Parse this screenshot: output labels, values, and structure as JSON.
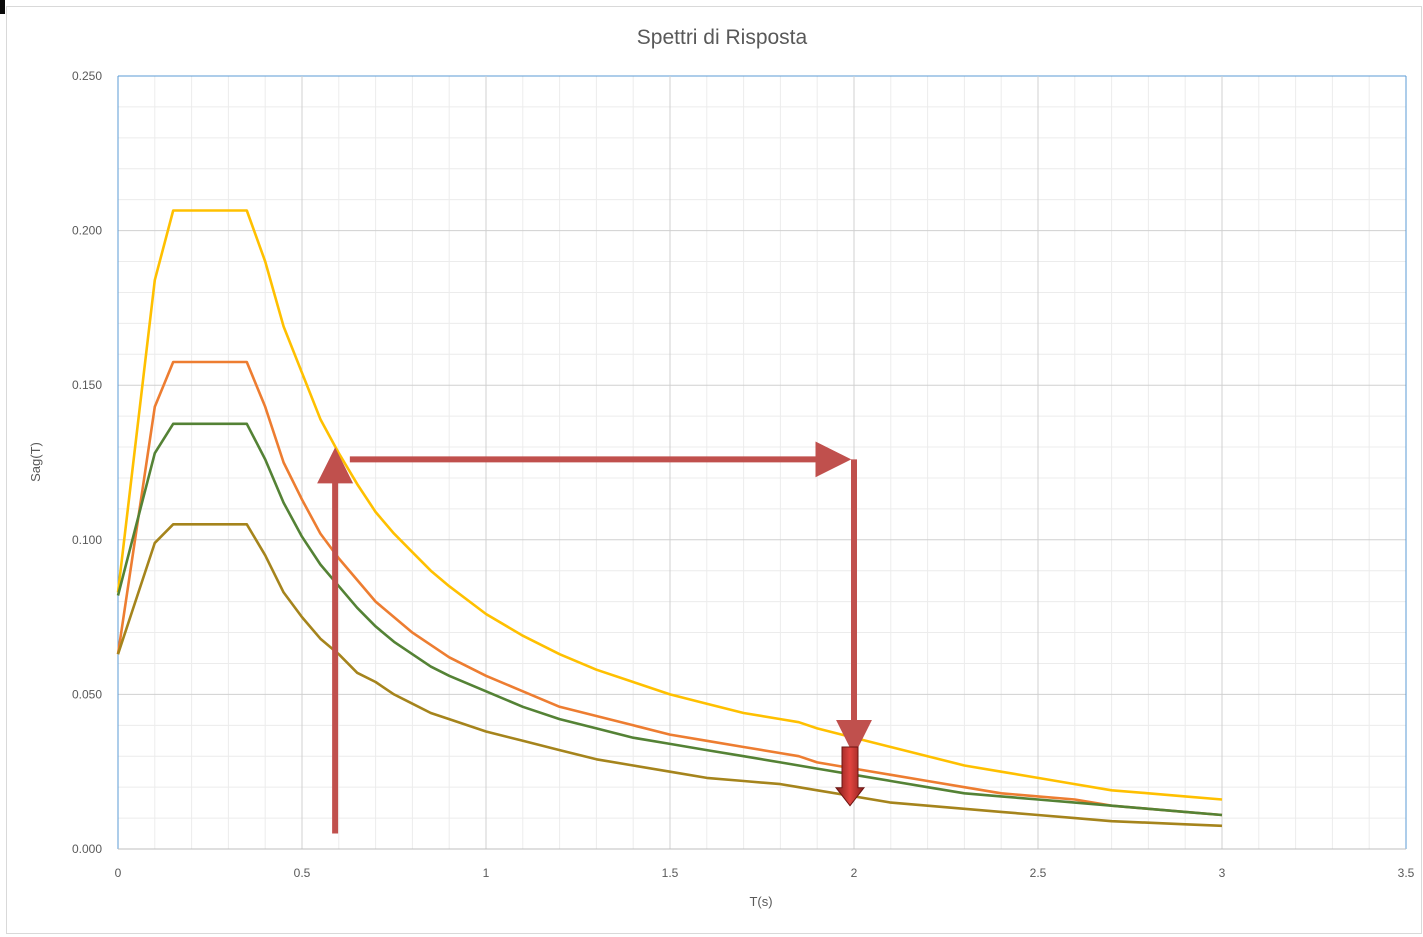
{
  "chart_data": {
    "type": "line",
    "title": "Spettri di Risposta",
    "xlabel": "T(s)",
    "ylabel": "Sag(T)",
    "xlim": [
      0,
      3.5
    ],
    "ylim": [
      0,
      0.25
    ],
    "xticks": [
      0,
      0.5,
      1,
      1.5,
      2,
      2.5,
      3,
      3.5
    ],
    "xtick_labels": [
      "0",
      "0.5",
      "1",
      "1.5",
      "2",
      "2.5",
      "3",
      "3.5"
    ],
    "yticks": [
      0,
      0.05,
      0.1,
      0.15,
      0.2,
      0.25
    ],
    "ytick_labels": [
      "0.000",
      "0.050",
      "0.100",
      "0.150",
      "0.200",
      "0.250"
    ],
    "grid": true,
    "legend": "none",
    "series": [
      {
        "color": "#ffc000",
        "points": [
          [
            0,
            0.083
          ],
          [
            0.1,
            0.184
          ],
          [
            0.15,
            0.2065
          ],
          [
            0.35,
            0.2065
          ],
          [
            0.4,
            0.19
          ],
          [
            0.45,
            0.169
          ],
          [
            0.5,
            0.154
          ],
          [
            0.55,
            0.139
          ],
          [
            0.6,
            0.128
          ],
          [
            0.65,
            0.118
          ],
          [
            0.7,
            0.109
          ],
          [
            0.75,
            0.102
          ],
          [
            0.8,
            0.096
          ],
          [
            0.85,
            0.09
          ],
          [
            0.9,
            0.085
          ],
          [
            1.0,
            0.076
          ],
          [
            1.1,
            0.069
          ],
          [
            1.2,
            0.063
          ],
          [
            1.3,
            0.058
          ],
          [
            1.4,
            0.054
          ],
          [
            1.5,
            0.05
          ],
          [
            1.6,
            0.047
          ],
          [
            1.7,
            0.044
          ],
          [
            1.8,
            0.042
          ],
          [
            1.85,
            0.041
          ],
          [
            1.9,
            0.039
          ],
          [
            2.0,
            0.036
          ],
          [
            2.1,
            0.033
          ],
          [
            2.2,
            0.03
          ],
          [
            2.3,
            0.027
          ],
          [
            2.4,
            0.025
          ],
          [
            2.5,
            0.023
          ],
          [
            2.6,
            0.021
          ],
          [
            2.7,
            0.019
          ],
          [
            2.8,
            0.018
          ],
          [
            2.9,
            0.017
          ],
          [
            3.0,
            0.016
          ]
        ]
      },
      {
        "color": "#ed7d31",
        "points": [
          [
            0,
            0.063
          ],
          [
            0.1,
            0.143
          ],
          [
            0.15,
            0.1575
          ],
          [
            0.35,
            0.1575
          ],
          [
            0.4,
            0.143
          ],
          [
            0.45,
            0.125
          ],
          [
            0.5,
            0.113
          ],
          [
            0.55,
            0.102
          ],
          [
            0.6,
            0.094
          ],
          [
            0.65,
            0.087
          ],
          [
            0.7,
            0.08
          ],
          [
            0.75,
            0.075
          ],
          [
            0.8,
            0.07
          ],
          [
            0.85,
            0.066
          ],
          [
            0.9,
            0.062
          ],
          [
            1.0,
            0.056
          ],
          [
            1.1,
            0.051
          ],
          [
            1.2,
            0.046
          ],
          [
            1.3,
            0.043
          ],
          [
            1.4,
            0.04
          ],
          [
            1.5,
            0.037
          ],
          [
            1.6,
            0.035
          ],
          [
            1.7,
            0.033
          ],
          [
            1.8,
            0.031
          ],
          [
            1.85,
            0.03
          ],
          [
            1.9,
            0.028
          ],
          [
            2.0,
            0.026
          ],
          [
            2.1,
            0.024
          ],
          [
            2.2,
            0.022
          ],
          [
            2.3,
            0.02
          ],
          [
            2.4,
            0.018
          ],
          [
            2.5,
            0.017
          ],
          [
            2.6,
            0.016
          ],
          [
            2.7,
            0.014
          ],
          [
            2.8,
            0.013
          ],
          [
            2.9,
            0.012
          ],
          [
            3.0,
            0.011
          ]
        ]
      },
      {
        "color": "#548235",
        "points": [
          [
            0,
            0.082
          ],
          [
            0.1,
            0.128
          ],
          [
            0.15,
            0.1375
          ],
          [
            0.35,
            0.1375
          ],
          [
            0.4,
            0.126
          ],
          [
            0.45,
            0.112
          ],
          [
            0.5,
            0.101
          ],
          [
            0.55,
            0.092
          ],
          [
            0.6,
            0.085
          ],
          [
            0.65,
            0.078
          ],
          [
            0.7,
            0.072
          ],
          [
            0.75,
            0.067
          ],
          [
            0.8,
            0.063
          ],
          [
            0.85,
            0.059
          ],
          [
            0.9,
            0.056
          ],
          [
            1.0,
            0.051
          ],
          [
            1.1,
            0.046
          ],
          [
            1.2,
            0.042
          ],
          [
            1.3,
            0.039
          ],
          [
            1.4,
            0.036
          ],
          [
            1.5,
            0.034
          ],
          [
            1.6,
            0.032
          ],
          [
            1.7,
            0.03
          ],
          [
            1.8,
            0.028
          ],
          [
            1.85,
            0.027
          ],
          [
            1.9,
            0.026
          ],
          [
            2.0,
            0.024
          ],
          [
            2.1,
            0.022
          ],
          [
            2.2,
            0.02
          ],
          [
            2.3,
            0.018
          ],
          [
            2.4,
            0.017
          ],
          [
            2.5,
            0.016
          ],
          [
            2.6,
            0.015
          ],
          [
            2.7,
            0.014
          ],
          [
            2.8,
            0.013
          ],
          [
            2.9,
            0.012
          ],
          [
            3.0,
            0.011
          ]
        ]
      },
      {
        "color": "#a5841c",
        "points": [
          [
            0,
            0.063
          ],
          [
            0.1,
            0.099
          ],
          [
            0.15,
            0.105
          ],
          [
            0.35,
            0.105
          ],
          [
            0.4,
            0.095
          ],
          [
            0.45,
            0.083
          ],
          [
            0.5,
            0.075
          ],
          [
            0.55,
            0.068
          ],
          [
            0.6,
            0.063
          ],
          [
            0.65,
            0.057
          ],
          [
            0.7,
            0.054
          ],
          [
            0.75,
            0.05
          ],
          [
            0.8,
            0.047
          ],
          [
            0.85,
            0.044
          ],
          [
            0.9,
            0.042
          ],
          [
            1.0,
            0.038
          ],
          [
            1.1,
            0.035
          ],
          [
            1.2,
            0.032
          ],
          [
            1.3,
            0.029
          ],
          [
            1.4,
            0.027
          ],
          [
            1.5,
            0.025
          ],
          [
            1.6,
            0.023
          ],
          [
            1.7,
            0.022
          ],
          [
            1.8,
            0.021
          ],
          [
            1.85,
            0.02
          ],
          [
            1.9,
            0.019
          ],
          [
            2.0,
            0.017
          ],
          [
            2.1,
            0.015
          ],
          [
            2.2,
            0.014
          ],
          [
            2.3,
            0.013
          ],
          [
            2.4,
            0.012
          ],
          [
            2.5,
            0.011
          ],
          [
            2.6,
            0.01
          ],
          [
            2.7,
            0.009
          ],
          [
            2.8,
            0.0085
          ],
          [
            2.9,
            0.008
          ],
          [
            3.0,
            0.0075
          ]
        ]
      }
    ],
    "annotation_arrows": {
      "color": "#c0504d",
      "description_points": {
        "up_arrow": [
          [
            0.59,
            0.005
          ],
          [
            0.59,
            0.126
          ]
        ],
        "right_arrow": [
          [
            0.63,
            0.126
          ],
          [
            1.96,
            0.126
          ]
        ],
        "down_arrow": [
          [
            2.0,
            0.126
          ],
          [
            2.0,
            0.034
          ]
        ],
        "block_arrow": [
          [
            2.0,
            0.033
          ],
          [
            2.0,
            0.014
          ]
        ]
      }
    }
  }
}
